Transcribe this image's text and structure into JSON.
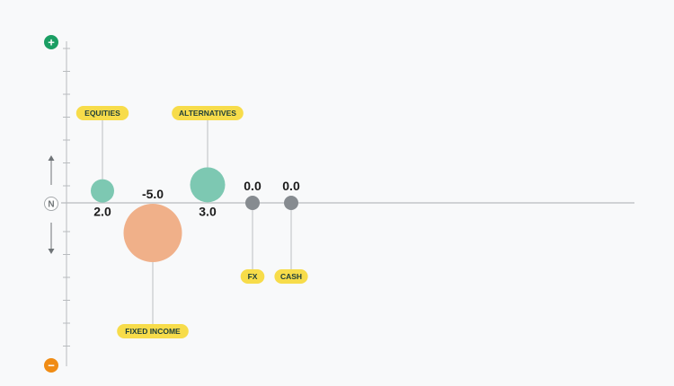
{
  "chart_data": {
    "type": "scatter",
    "title": "",
    "xlabel": "",
    "ylabel": "",
    "ylim": [
      -7,
      7
    ],
    "axis_marker_labels": {
      "top": "+",
      "neutral": "N",
      "bottom": "−"
    },
    "categories": [
      "EQUITIES",
      "FIXED INCOME",
      "ALTERNATIVES",
      "FX",
      "CASH"
    ],
    "values": [
      2.0,
      -5.0,
      3.0,
      0.0,
      0.0
    ],
    "value_labels": [
      "2.0",
      "-5.0",
      "3.0",
      "0.0",
      "0.0"
    ],
    "point_colors": [
      "#7dc8b2",
      "#f0b089",
      "#7dc8b2",
      "#868b90",
      "#868b90"
    ],
    "grid": false
  },
  "colors": {
    "positive_marker": "#1a9e63",
    "negative_marker": "#f08c14",
    "label_pill": "#f7dc4a",
    "axis": "#b9bcbf",
    "neutral_point": "#868b90"
  },
  "icons": {
    "top": "plus-icon",
    "neutral": "neutral-n-icon",
    "bottom": "minus-icon",
    "up": "arrow-up-icon",
    "down": "arrow-down-icon"
  }
}
